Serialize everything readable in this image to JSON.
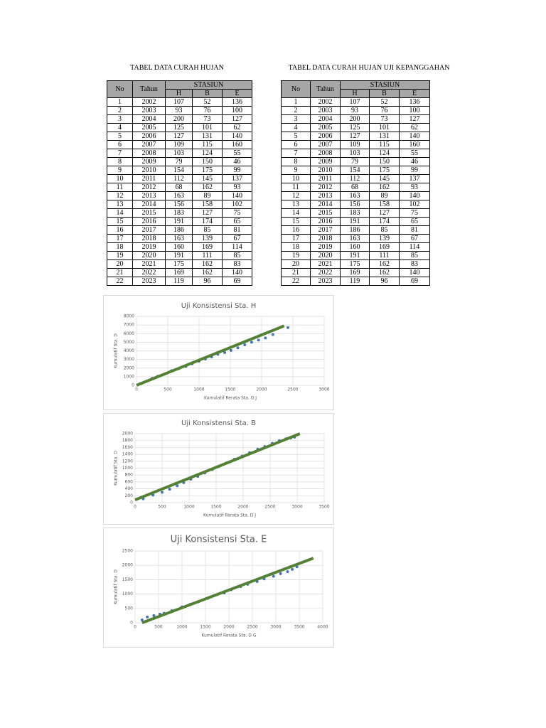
{
  "tables": [
    {
      "title": "TABEL DATA CURAH HUJAN",
      "header": {
        "no": "No",
        "tahun": "Tahun",
        "group": "STASIUN",
        "stations": [
          "H",
          "B",
          "E"
        ]
      },
      "rows": [
        [
          1,
          2002,
          107,
          52,
          136
        ],
        [
          2,
          2003,
          93,
          76,
          100
        ],
        [
          3,
          2004,
          200,
          73,
          127
        ],
        [
          4,
          2005,
          125,
          101,
          62
        ],
        [
          5,
          2006,
          127,
          131,
          140
        ],
        [
          6,
          2007,
          109,
          115,
          160
        ],
        [
          7,
          2008,
          103,
          124,
          55
        ],
        [
          8,
          2009,
          79,
          150,
          46
        ],
        [
          9,
          2010,
          154,
          175,
          99
        ],
        [
          10,
          2011,
          112,
          145,
          137
        ],
        [
          11,
          2012,
          68,
          162,
          93
        ],
        [
          12,
          2013,
          163,
          89,
          140
        ],
        [
          13,
          2014,
          156,
          158,
          102
        ],
        [
          14,
          2015,
          183,
          127,
          75
        ],
        [
          15,
          2016,
          191,
          174,
          65
        ],
        [
          16,
          2017,
          186,
          85,
          81
        ],
        [
          17,
          2018,
          163,
          139,
          67
        ],
        [
          18,
          2019,
          160,
          169,
          114
        ],
        [
          19,
          2020,
          191,
          111,
          85
        ],
        [
          20,
          2021,
          175,
          162,
          83
        ],
        [
          21,
          2022,
          169,
          162,
          140
        ],
        [
          22,
          2023,
          119,
          96,
          69
        ]
      ]
    },
    {
      "title": "TABEL DATA CURAH HUJAN UJI KEPANGGAHAN",
      "header": {
        "no": "No",
        "tahun": "Tahun",
        "group": "STASIUN",
        "stations": [
          "H",
          "B",
          "E"
        ]
      },
      "rows": [
        [
          1,
          2002,
          107,
          52,
          136
        ],
        [
          2,
          2003,
          93,
          76,
          100
        ],
        [
          3,
          2004,
          200,
          73,
          127
        ],
        [
          4,
          2005,
          125,
          101,
          62
        ],
        [
          5,
          2006,
          127,
          131,
          140
        ],
        [
          6,
          2007,
          109,
          115,
          160
        ],
        [
          7,
          2008,
          103,
          124,
          55
        ],
        [
          8,
          2009,
          79,
          150,
          46
        ],
        [
          9,
          2010,
          154,
          175,
          99
        ],
        [
          10,
          2011,
          112,
          145,
          137
        ],
        [
          11,
          2012,
          68,
          162,
          93
        ],
        [
          12,
          2013,
          163,
          89,
          140
        ],
        [
          13,
          2014,
          156,
          158,
          102
        ],
        [
          14,
          2015,
          183,
          127,
          75
        ],
        [
          15,
          2016,
          191,
          174,
          65
        ],
        [
          16,
          2017,
          186,
          85,
          81
        ],
        [
          17,
          2018,
          163,
          139,
          67
        ],
        [
          18,
          2019,
          160,
          169,
          114
        ],
        [
          19,
          2020,
          191,
          111,
          85
        ],
        [
          20,
          2021,
          175,
          162,
          83
        ],
        [
          21,
          2022,
          169,
          162,
          140
        ],
        [
          22,
          2023,
          119,
          96,
          69
        ]
      ]
    }
  ],
  "chart_data": [
    {
      "type": "scatter",
      "title": "Uji Konsistensi Sta. H",
      "x_label": "Kumulatif Rerata Sta. G J",
      "y_label": "Kumulatif Sta. D",
      "xlim": [
        0,
        3000
      ],
      "ylim": [
        0,
        8000
      ],
      "xticks": [
        0,
        500,
        1000,
        1500,
        2000,
        2500,
        3000
      ],
      "yticks": [
        0,
        1000,
        2000,
        3000,
        4000,
        5000,
        6000,
        7000,
        8000
      ],
      "grid": true,
      "x": [
        60,
        150,
        250,
        340,
        450,
        560,
        680,
        790,
        890,
        1000,
        1100,
        1200,
        1300,
        1410,
        1510,
        1620,
        1730,
        1840,
        1950,
        2060,
        2180,
        2420
      ],
      "values": [
        200,
        450,
        800,
        1050,
        1300,
        1700,
        1950,
        2200,
        2500,
        2800,
        3050,
        3300,
        3600,
        3800,
        4050,
        4350,
        4700,
        5000,
        5250,
        5500,
        5900,
        6700
      ],
      "color": "#4472c4",
      "trendline": {
        "x": [
          0,
          2360
        ],
        "values": [
          0,
          6900
        ],
        "color": "#548235"
      }
    },
    {
      "type": "scatter",
      "title": "Uji Konsistensi Sta. B",
      "x_label": "Kumulatif Rerata Sta. D J",
      "y_label": "Kumulatif Sta. D",
      "xlim": [
        0,
        3500
      ],
      "ylim": [
        0,
        2000
      ],
      "xticks": [
        0,
        500,
        1000,
        1500,
        2000,
        2500,
        3000,
        3500
      ],
      "yticks": [
        0,
        200,
        400,
        600,
        800,
        1000,
        1200,
        1400,
        1600,
        1800,
        2000
      ],
      "grid": true,
      "x": [
        150,
        330,
        500,
        640,
        780,
        900,
        1030,
        1160,
        1290,
        1430,
        1560,
        1690,
        1840,
        1980,
        2120,
        2270,
        2400,
        2540,
        2670,
        2790,
        2880,
        2950
      ],
      "values": [
        110,
        220,
        300,
        390,
        490,
        580,
        680,
        760,
        860,
        960,
        1060,
        1150,
        1260,
        1350,
        1450,
        1550,
        1630,
        1720,
        1800,
        1850,
        1870,
        1900
      ],
      "color": "#4472c4",
      "trendline": {
        "x": [
          0,
          3050
        ],
        "values": [
          80,
          2000
        ],
        "color": "#548235"
      }
    },
    {
      "type": "scatter",
      "title": "Uji Konsistensi Sta. E",
      "x_label": "Kumulatif Rerata Sta. D G",
      "y_label": "Kumulatif Sta. D",
      "xlim": [
        0,
        4000
      ],
      "ylim": [
        0,
        2500
      ],
      "xticks": [
        0,
        500,
        1000,
        1500,
        2000,
        2500,
        3000,
        3500,
        4000
      ],
      "yticks": [
        0,
        500,
        1000,
        1500,
        2000,
        2500
      ],
      "grid": true,
      "x": [
        150,
        260,
        400,
        530,
        620,
        780,
        1000,
        1180,
        1350,
        1550,
        1700,
        1900,
        2050,
        2250,
        2400,
        2600,
        2750,
        2950,
        3100,
        3250,
        3350,
        3450
      ],
      "values": [
        100,
        200,
        250,
        300,
        330,
        420,
        550,
        650,
        730,
        850,
        960,
        1040,
        1150,
        1260,
        1340,
        1440,
        1530,
        1620,
        1710,
        1780,
        1860,
        1950
      ],
      "color": "#4472c4",
      "trendline": {
        "x": [
          150,
          3800
        ],
        "values": [
          0,
          2250
        ],
        "color": "#548235"
      }
    }
  ]
}
